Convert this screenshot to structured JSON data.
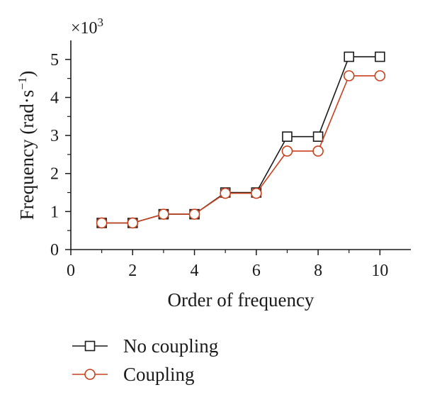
{
  "chart_data": {
    "type": "line",
    "xlabel": "Order of frequency",
    "ylabel": {
      "main": "Frequency (rad·s",
      "sup": "−1",
      "close": ")"
    },
    "y_multiplier": {
      "base": "×10",
      "exp": "3"
    },
    "xlim": [
      0,
      11
    ],
    "ylim": [
      0,
      5.5
    ],
    "x_ticks": [
      0,
      2,
      4,
      6,
      8,
      10
    ],
    "y_ticks": [
      0,
      1,
      2,
      3,
      4,
      5
    ],
    "x_minor_ticks": [
      1,
      3,
      5,
      7,
      9
    ],
    "legend_position": "bottom-left",
    "grid": false,
    "series": [
      {
        "name": "No coupling",
        "marker": "square",
        "color": "#1a1a1a",
        "x": [
          1,
          2,
          3,
          4,
          5,
          6,
          7,
          8,
          9,
          10
        ],
        "y": [
          0.7,
          0.7,
          0.93,
          0.93,
          1.5,
          1.5,
          2.97,
          2.97,
          5.07,
          5.07
        ]
      },
      {
        "name": "Coupling",
        "marker": "circle",
        "color": "#c8401c",
        "x": [
          1,
          2,
          3,
          4,
          5,
          6,
          7,
          8,
          9,
          10
        ],
        "y": [
          0.7,
          0.7,
          0.93,
          0.93,
          1.48,
          1.48,
          2.59,
          2.59,
          4.57,
          4.57
        ]
      }
    ]
  }
}
